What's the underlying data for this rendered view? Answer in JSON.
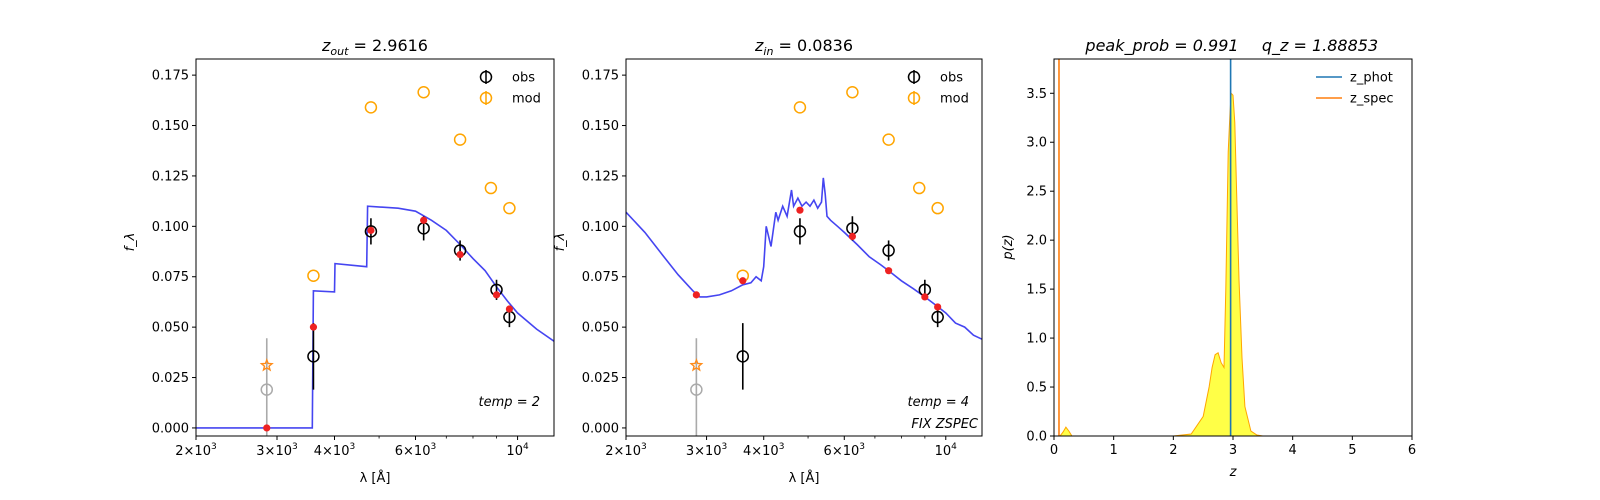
{
  "chart_data": [
    {
      "type": "line",
      "panel": "sed-fit-zout",
      "title": "z_out = 2.9616",
      "title_main": "z",
      "title_sub": "out",
      "title_value": " = 2.9616",
      "xlabel": "λ [Å]",
      "ylabel": "f_λ",
      "x_scale": "log",
      "xlim": [
        2000,
        12000
      ],
      "ylim": [
        -0.004,
        0.183
      ],
      "x_ticks": [
        {
          "value": 2000,
          "mant": "2×10",
          "exp": "3"
        },
        {
          "value": 3000,
          "mant": "3×10",
          "exp": "3"
        },
        {
          "value": 4000,
          "mant": "4×10",
          "exp": "3"
        },
        {
          "value": 6000,
          "mant": "6×10",
          "exp": "3"
        },
        {
          "value": 10000,
          "mant": "10",
          "exp": "4"
        }
      ],
      "y_ticks": [
        0.0,
        0.025,
        0.05,
        0.075,
        0.1,
        0.125,
        0.15,
        0.175
      ],
      "y_tick_labels": [
        "0.000",
        "0.025",
        "0.050",
        "0.075",
        "0.100",
        "0.125",
        "0.150",
        "0.175"
      ],
      "legend": {
        "position": "top-right",
        "entries": [
          {
            "label": "obs",
            "color": "#000000"
          },
          {
            "label": "mod",
            "color": "#ffa500"
          }
        ]
      },
      "annotations": [
        "temp = 2"
      ],
      "series": [
        {
          "name": "model-template",
          "kind": "line",
          "color": "#3b3bf0",
          "x": [
            2000,
            3520,
            3580,
            3600,
            4000,
            4010,
            4700,
            4720,
            5500,
            6000,
            6500,
            7000,
            7500,
            8000,
            8500,
            9000,
            9500,
            10000,
            11000,
            12000
          ],
          "y": [
            0.0,
            0.0,
            0.0,
            0.068,
            0.0675,
            0.0815,
            0.08,
            0.11,
            0.109,
            0.1075,
            0.103,
            0.098,
            0.091,
            0.084,
            0.078,
            0.07,
            0.063,
            0.057,
            0.049,
            0.043
          ]
        },
        {
          "name": "model-fluxes",
          "kind": "scatter",
          "color": "#ee2222",
          "x": [
            2850,
            3600,
            4800,
            6250,
            7500,
            9000,
            9600
          ],
          "y": [
            0.0,
            0.05,
            0.098,
            0.103,
            0.086,
            0.066,
            0.059
          ]
        },
        {
          "name": "obs",
          "kind": "errorbar",
          "color": "#000000",
          "x": [
            3600,
            4800,
            6250,
            7500,
            9000,
            9600
          ],
          "y": [
            0.0355,
            0.0975,
            0.099,
            0.088,
            0.0685,
            0.055
          ],
          "yerr": [
            0.0165,
            0.0065,
            0.006,
            0.005,
            0.005,
            0.005
          ]
        },
        {
          "name": "obs-excluded",
          "kind": "errorbar",
          "color": "#aaaaaa",
          "x": [
            2850
          ],
          "y": [
            0.019
          ],
          "yerr": [
            0.0255
          ]
        },
        {
          "name": "mod",
          "kind": "scatter",
          "color": "#ffa500",
          "x": [
            3600,
            4800,
            6250,
            7500,
            8750,
            9600
          ],
          "y": [
            0.0755,
            0.159,
            0.1665,
            0.143,
            0.119,
            0.109
          ]
        },
        {
          "name": "star",
          "kind": "star",
          "color": "#ff8c1a",
          "x": [
            2850
          ],
          "y": [
            0.031
          ]
        }
      ]
    },
    {
      "type": "line",
      "panel": "sed-fit-zin",
      "title": "z_in = 0.0836",
      "title_main": "z",
      "title_sub": "in",
      "title_value": " = 0.0836",
      "xlabel": "λ [Å]",
      "ylabel": "f_λ",
      "x_scale": "log",
      "xlim": [
        2000,
        12000
      ],
      "ylim": [
        -0.004,
        0.183
      ],
      "x_ticks": [
        {
          "value": 2000,
          "mant": "2×10",
          "exp": "3"
        },
        {
          "value": 3000,
          "mant": "3×10",
          "exp": "3"
        },
        {
          "value": 4000,
          "mant": "4×10",
          "exp": "3"
        },
        {
          "value": 6000,
          "mant": "6×10",
          "exp": "3"
        },
        {
          "value": 10000,
          "mant": "10",
          "exp": "4"
        }
      ],
      "y_ticks": [
        0.0,
        0.025,
        0.05,
        0.075,
        0.1,
        0.125,
        0.15,
        0.175
      ],
      "y_tick_labels": [
        "0.000",
        "0.025",
        "0.050",
        "0.075",
        "0.100",
        "0.125",
        "0.150",
        "0.175"
      ],
      "legend": {
        "position": "top-right",
        "entries": [
          {
            "label": "obs",
            "color": "#000000"
          },
          {
            "label": "mod",
            "color": "#ffa500"
          }
        ]
      },
      "annotations": [
        "temp = 4",
        "FIX ZSPEC"
      ],
      "series": [
        {
          "name": "model-template",
          "kind": "line",
          "color": "#3b3bf0",
          "x": [
            2000,
            2200,
            2400,
            2600,
            2800,
            2900,
            3000,
            3200,
            3400,
            3600,
            3750,
            3850,
            3950,
            4000,
            4050,
            4150,
            4250,
            4300,
            4400,
            4500,
            4600,
            4650,
            4750,
            4850,
            4950,
            5050,
            5150,
            5250,
            5350,
            5400,
            5450,
            5500,
            5600,
            5800,
            6000,
            6400,
            6800,
            7200,
            7600,
            8000,
            8500,
            9000,
            9500,
            10000,
            10500,
            11000,
            11500,
            12000
          ],
          "y": [
            0.107,
            0.097,
            0.086,
            0.076,
            0.068,
            0.065,
            0.065,
            0.066,
            0.068,
            0.071,
            0.072,
            0.075,
            0.073,
            0.08,
            0.1,
            0.09,
            0.107,
            0.103,
            0.11,
            0.105,
            0.118,
            0.11,
            0.114,
            0.11,
            0.112,
            0.11,
            0.113,
            0.109,
            0.112,
            0.124,
            0.116,
            0.105,
            0.103,
            0.1,
            0.097,
            0.091,
            0.085,
            0.081,
            0.077,
            0.073,
            0.069,
            0.065,
            0.061,
            0.057,
            0.052,
            0.05,
            0.046,
            0.044
          ]
        },
        {
          "name": "model-fluxes",
          "kind": "scatter",
          "color": "#ee2222",
          "x": [
            2850,
            3600,
            4800,
            6250,
            7500,
            9000,
            9600
          ],
          "y": [
            0.066,
            0.073,
            0.108,
            0.095,
            0.078,
            0.065,
            0.06
          ]
        },
        {
          "name": "obs",
          "kind": "errorbar",
          "color": "#000000",
          "x": [
            3600,
            4800,
            6250,
            7500,
            9000,
            9600
          ],
          "y": [
            0.0355,
            0.0975,
            0.099,
            0.088,
            0.0685,
            0.055
          ],
          "yerr": [
            0.0165,
            0.0065,
            0.006,
            0.005,
            0.005,
            0.005
          ]
        },
        {
          "name": "obs-excluded",
          "kind": "errorbar",
          "color": "#aaaaaa",
          "x": [
            2850
          ],
          "y": [
            0.019
          ],
          "yerr": [
            0.0255
          ]
        },
        {
          "name": "mod",
          "kind": "scatter",
          "color": "#ffa500",
          "x": [
            3600,
            4800,
            6250,
            7500,
            8750,
            9600
          ],
          "y": [
            0.0755,
            0.159,
            0.1665,
            0.143,
            0.119,
            0.109
          ]
        },
        {
          "name": "star",
          "kind": "star",
          "color": "#ff8c1a",
          "x": [
            2850
          ],
          "y": [
            0.031
          ]
        }
      ]
    },
    {
      "type": "area",
      "panel": "pdz",
      "title": "peak_prob = 0.991    q_z = 1.88853",
      "title_left": "peak_prob = 0.991",
      "title_right": "q_z = 1.88853",
      "xlabel": "z",
      "ylabel": "p(z)",
      "xlim": [
        0,
        6
      ],
      "ylim": [
        0,
        3.85
      ],
      "x_ticks": [
        0,
        1,
        2,
        3,
        4,
        5,
        6
      ],
      "x_tick_labels": [
        "0",
        "1",
        "2",
        "3",
        "4",
        "5",
        "6"
      ],
      "y_ticks": [
        0.0,
        0.5,
        1.0,
        1.5,
        2.0,
        2.5,
        3.0,
        3.5
      ],
      "y_tick_labels": [
        "0.0",
        "0.5",
        "1.0",
        "1.5",
        "2.0",
        "2.5",
        "3.0",
        "3.5"
      ],
      "legend": {
        "position": "top-right",
        "entries": [
          {
            "label": "z_phot",
            "color": "#1f77b4"
          },
          {
            "label": "z_spec",
            "color": "#ff7f0e"
          }
        ]
      },
      "z_phot": 2.96,
      "z_spec": 0.0836,
      "pdf": {
        "fill": "#ffff33",
        "edge": "#ffa500",
        "x": [
          0.0,
          0.1,
          0.15,
          0.2,
          0.25,
          0.3,
          0.4,
          0.5,
          1.0,
          2.0,
          2.3,
          2.5,
          2.6,
          2.65,
          2.7,
          2.75,
          2.8,
          2.85,
          2.88,
          2.9,
          2.92,
          2.95,
          2.97,
          3.0,
          3.03,
          3.06,
          3.1,
          3.15,
          3.2,
          3.3,
          3.4,
          3.5,
          5.0
        ],
        "y": [
          0.0,
          0.0,
          0.04,
          0.09,
          0.05,
          0.0,
          0.0,
          0.0,
          0.0,
          0.0,
          0.02,
          0.2,
          0.5,
          0.7,
          0.83,
          0.85,
          0.75,
          0.7,
          1.5,
          2.2,
          2.9,
          3.3,
          3.5,
          3.48,
          3.2,
          2.5,
          1.6,
          0.8,
          0.3,
          0.05,
          0.01,
          0.0,
          0.0
        ]
      }
    }
  ]
}
